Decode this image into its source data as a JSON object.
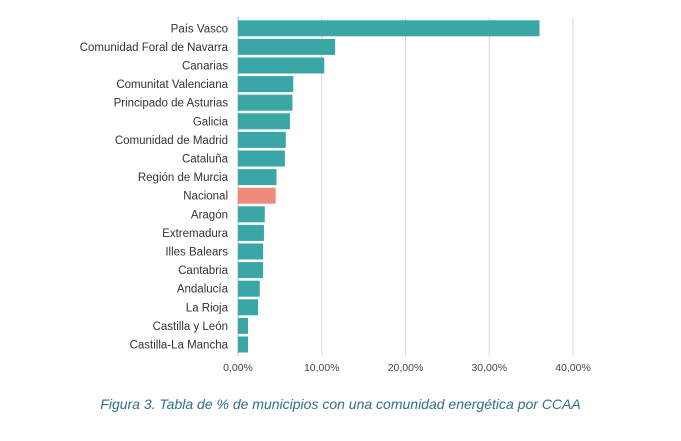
{
  "caption": "Figura 3. Tabla de % de municipios con una comunidad energética por CCAA",
  "colors": {
    "bar": "#3aa6a5",
    "highlight": "#ec8c7d",
    "grid": "#d9d9d9",
    "axis": "#bbbbbb"
  },
  "chart_data": {
    "type": "bar",
    "orientation": "horizontal",
    "title": "",
    "xlabel": "",
    "ylabel": "",
    "grid": true,
    "xlim": [
      0,
      40
    ],
    "x_tick_values": [
      0,
      10,
      20,
      30,
      40
    ],
    "x_ticks": [
      "0,00%",
      "10,00%",
      "20,00%",
      "30,00%",
      "40,00%"
    ],
    "highlight_category": "Nacional",
    "categories": [
      "País Vasco",
      "Comunidad Foral de Navarra",
      "Canarias",
      "Comunitat Valenciana",
      "Principado de Asturias",
      "Galicia",
      "Comunidad de Madrid",
      "Cataluña",
      "Región de Murcia",
      "Nacional",
      "Aragón",
      "Extremadura",
      "Illes Balears",
      "Cantabria",
      "Andalucía",
      "La Rioja",
      "Castilla y León",
      "Castilla-La Mancha"
    ],
    "values": [
      36.0,
      11.6,
      10.3,
      6.6,
      6.5,
      6.2,
      5.7,
      5.6,
      4.6,
      4.5,
      3.2,
      3.1,
      3.0,
      3.0,
      2.6,
      2.4,
      1.2,
      1.2
    ]
  }
}
